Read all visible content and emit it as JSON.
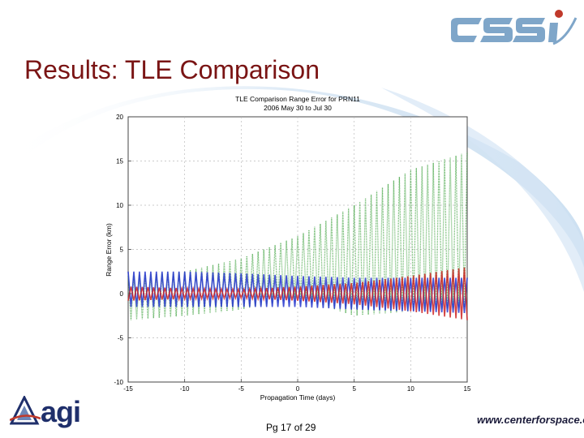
{
  "slide": {
    "title": "Results: TLE Comparison",
    "page_number": "Pg 17 of 29",
    "footer_url": "www.centerforspace.com",
    "logos": {
      "top_right": "cssi",
      "bottom_left": "agi"
    }
  },
  "colors": {
    "title": "#7a1414",
    "accent_blue": "#1f4f9a",
    "swoosh": "#cfe1f2"
  },
  "chart_data": {
    "type": "scatter",
    "title": "TLE Comparison Range Error for PRN11",
    "subtitle": "2006 May 30 to Jul 30",
    "xlabel": "Propagation Time (days)",
    "ylabel": "Range Error (km)",
    "xlim": [
      -15,
      15
    ],
    "ylim": [
      -10,
      20
    ],
    "xticks": [
      -15,
      -10,
      -5,
      0,
      5,
      10,
      15
    ],
    "yticks": [
      -10,
      -5,
      0,
      5,
      10,
      15,
      20
    ],
    "grid": true,
    "oscillation_period_days": 0.5,
    "series": [
      {
        "color": "#2e9a2e",
        "x": [
          -15,
          -10,
          -5,
          0,
          5,
          10,
          15
        ],
        "upper": [
          2.0,
          2.5,
          4.0,
          6.5,
          10.0,
          14.0,
          16.0
        ],
        "lower": [
          -3.0,
          -2.5,
          -1.8,
          -0.5,
          -2.5,
          -2.0,
          -1.5
        ]
      },
      {
        "color": "#2233cc",
        "x": [
          -15,
          -10,
          -5,
          0,
          5,
          10,
          15
        ],
        "upper": [
          2.5,
          2.5,
          2.3,
          2.0,
          1.8,
          1.8,
          1.8
        ],
        "lower": [
          -1.5,
          -1.5,
          -1.5,
          -1.5,
          -1.8,
          -2.0,
          -2.2
        ]
      },
      {
        "color": "#cc2222",
        "x": [
          -15,
          -10,
          -5,
          0,
          5,
          10,
          15
        ],
        "upper": [
          0.8,
          0.6,
          0.5,
          0.8,
          1.2,
          2.0,
          3.0
        ],
        "lower": [
          -0.8,
          -0.6,
          -0.5,
          -0.8,
          -1.2,
          -2.0,
          -3.0
        ]
      }
    ]
  }
}
